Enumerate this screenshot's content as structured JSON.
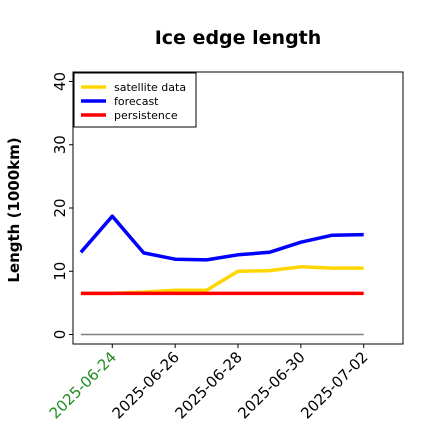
{
  "chart_data": {
    "type": "line",
    "title": "Ice edge length",
    "xlabel": "",
    "ylabel": "Length (1000km)",
    "ylim": [
      -1.5,
      41.5
    ],
    "xlim": [
      "2025-06-22T18:00",
      "2025-07-03T06:00"
    ],
    "yticks": [
      0,
      10,
      20,
      30,
      40
    ],
    "xticks": [
      "2025-06-24",
      "2025-06-26",
      "2025-06-28",
      "2025-06-30",
      "2025-07-02"
    ],
    "highlight_tick_color": "#228b22",
    "grid": false,
    "legend_position": "top-left",
    "baseline": {
      "value": 0,
      "color": "#808080"
    },
    "series": [
      {
        "name": "satellite data",
        "color": "#ffd700",
        "x": [
          "2025-06-23",
          "2025-06-24",
          "2025-06-25",
          "2025-06-26",
          "2025-06-27",
          "2025-06-28",
          "2025-06-29",
          "2025-06-30",
          "2025-07-01",
          "2025-07-02"
        ],
        "y": [
          6.5,
          6.5,
          6.7,
          7.0,
          7.0,
          10.0,
          10.1,
          10.7,
          10.5,
          10.5
        ]
      },
      {
        "name": "forecast",
        "color": "#0000ff",
        "x": [
          "2025-06-23",
          "2025-06-24",
          "2025-06-25",
          "2025-06-26",
          "2025-06-27",
          "2025-06-28",
          "2025-06-29",
          "2025-06-30",
          "2025-07-01",
          "2025-07-02"
        ],
        "y": [
          13.0,
          18.7,
          12.9,
          11.9,
          11.8,
          12.6,
          13.0,
          14.6,
          15.7,
          15.8
        ]
      },
      {
        "name": "persistence",
        "color": "#ff0000",
        "x": [
          "2025-06-23",
          "2025-06-24",
          "2025-06-25",
          "2025-06-26",
          "2025-06-27",
          "2025-06-28",
          "2025-06-29",
          "2025-06-30",
          "2025-07-01",
          "2025-07-02"
        ],
        "y": [
          6.5,
          6.5,
          6.5,
          6.5,
          6.5,
          6.5,
          6.5,
          6.5,
          6.5,
          6.5
        ]
      }
    ]
  }
}
